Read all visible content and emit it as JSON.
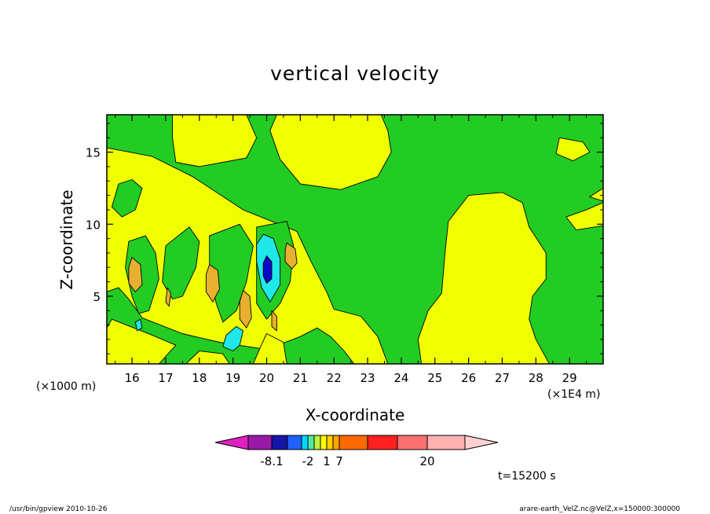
{
  "footer": {
    "left": "/usr/bin/gpview   2010-10-26",
    "right": "arare-earth_VelZ.nc@VelZ,x=150000:300000"
  },
  "chart_data": {
    "type": "heatmap",
    "title": "vertical velocity",
    "xlabel": "X-coordinate",
    "ylabel": "Z-coordinate",
    "x_unit_left": "(×1000 m)",
    "x_unit_right": "(×1E4 m)",
    "time_label": "t=15200 s",
    "xlim": [
      15.25,
      30.0
    ],
    "ylim": [
      0.3,
      17.6
    ],
    "x_ticks": [
      "16",
      "17",
      "18",
      "19",
      "20",
      "21",
      "22",
      "23",
      "24",
      "25",
      "26",
      "27",
      "28",
      "29"
    ],
    "x_tick_values": [
      16,
      17,
      18,
      19,
      20,
      21,
      22,
      23,
      24,
      25,
      26,
      27,
      28,
      29
    ],
    "y_ticks": [
      "5",
      "10",
      "15"
    ],
    "y_tick_values": [
      5,
      10,
      15
    ],
    "colorbar": {
      "labels": [
        "-8.1",
        "-2",
        "1",
        "7",
        "20"
      ],
      "segments": [
        "#9a1aa8",
        "#1515a8",
        "#2060ff",
        "#00d8ff",
        "#50e8a0",
        "#c0f040",
        "#ffff00",
        "#ffd000",
        "#ffa500",
        "#ff6a00",
        "#ff2020",
        "#ff7070",
        "#ffb0b0"
      ],
      "under_color": "#e020c0",
      "over_color": "#ffd0d0"
    },
    "colors": {
      "background_field": "#22cc22",
      "positive_weak": "#f0ff00",
      "positive_mid": "#e8b030",
      "negative_weak": "#20e8e8",
      "negative_strong": "#0808c8"
    },
    "regions": [
      {
        "level": "positive_weak",
        "pts": [
          [
            20.3,
            17.6
          ],
          [
            23.4,
            17.6
          ],
          [
            23.6,
            16.5
          ],
          [
            23.7,
            15.0
          ],
          [
            23.3,
            13.3
          ],
          [
            22.2,
            12.4
          ],
          [
            21.0,
            12.8
          ],
          [
            20.4,
            14.5
          ],
          [
            20.1,
            16.5
          ]
        ]
      },
      {
        "level": "positive_weak",
        "pts": [
          [
            17.2,
            17.6
          ],
          [
            19.4,
            17.6
          ],
          [
            19.7,
            16.0
          ],
          [
            19.4,
            14.6
          ],
          [
            18.0,
            14.0
          ],
          [
            17.3,
            14.3
          ],
          [
            17.2,
            16.0
          ]
        ]
      },
      {
        "level": "positive_weak",
        "pts": [
          [
            28.7,
            16.0
          ],
          [
            29.4,
            15.7
          ],
          [
            29.6,
            15.0
          ],
          [
            29.1,
            14.4
          ],
          [
            28.6,
            14.9
          ]
        ]
      },
      {
        "level": "positive_weak",
        "pts": [
          [
            15.25,
            15.3
          ],
          [
            16.6,
            14.7
          ],
          [
            17.8,
            13.3
          ],
          [
            19.3,
            11.0
          ],
          [
            20.9,
            9.5
          ],
          [
            21.3,
            7.5
          ],
          [
            21.8,
            5.2
          ],
          [
            22.0,
            4.1
          ],
          [
            22.8,
            3.6
          ],
          [
            23.3,
            2.2
          ],
          [
            23.6,
            0.3
          ],
          [
            15.25,
            0.3
          ]
        ]
      },
      {
        "level": "positive_weak",
        "pts": [
          [
            24.6,
            0.3
          ],
          [
            28.4,
            0.3
          ],
          [
            28.0,
            2.0
          ],
          [
            27.8,
            3.4
          ],
          [
            27.9,
            5.0
          ],
          [
            28.3,
            6.2
          ],
          [
            28.3,
            8.0
          ],
          [
            27.8,
            9.8
          ],
          [
            27.6,
            11.5
          ],
          [
            27.0,
            12.2
          ],
          [
            26.0,
            12.0
          ],
          [
            25.4,
            10.2
          ],
          [
            25.3,
            8.0
          ],
          [
            25.2,
            5.2
          ],
          [
            24.8,
            4.0
          ],
          [
            24.5,
            2.0
          ]
        ]
      },
      {
        "level": "positive_weak",
        "pts": [
          [
            28.9,
            10.5
          ],
          [
            29.5,
            11.0
          ],
          [
            30.0,
            11.5
          ],
          [
            30.0,
            9.9
          ],
          [
            29.2,
            9.6
          ]
        ]
      },
      {
        "level": "positive_weak",
        "pts": [
          [
            30.0,
            12.5
          ],
          [
            29.6,
            11.9
          ],
          [
            30.0,
            11.6
          ]
        ]
      },
      {
        "level": "background_field",
        "pts": [
          [
            15.6,
            12.8
          ],
          [
            16.0,
            13.1
          ],
          [
            16.3,
            12.5
          ],
          [
            16.1,
            11.0
          ],
          [
            15.7,
            10.5
          ],
          [
            15.4,
            11.2
          ]
        ]
      },
      {
        "level": "background_field",
        "pts": [
          [
            15.9,
            8.8
          ],
          [
            16.4,
            9.2
          ],
          [
            16.7,
            8.0
          ],
          [
            16.8,
            6.2
          ],
          [
            16.5,
            4.0
          ],
          [
            16.2,
            3.8
          ],
          [
            16.0,
            5.0
          ],
          [
            15.8,
            7.0
          ]
        ]
      },
      {
        "level": "background_field",
        "pts": [
          [
            17.0,
            8.5
          ],
          [
            17.7,
            9.8
          ],
          [
            18.0,
            8.8
          ],
          [
            17.9,
            7.0
          ],
          [
            17.5,
            5.0
          ],
          [
            17.2,
            4.8
          ],
          [
            16.9,
            6.0
          ]
        ]
      },
      {
        "level": "background_field",
        "pts": [
          [
            18.3,
            9.2
          ],
          [
            19.2,
            10.0
          ],
          [
            19.6,
            8.5
          ],
          [
            19.4,
            6.0
          ],
          [
            19.1,
            4.0
          ],
          [
            18.7,
            3.2
          ],
          [
            18.5,
            4.5
          ],
          [
            18.3,
            6.5
          ]
        ]
      },
      {
        "level": "background_field",
        "pts": [
          [
            19.7,
            9.8
          ],
          [
            20.6,
            10.2
          ],
          [
            20.8,
            8.5
          ],
          [
            20.7,
            6.0
          ],
          [
            20.4,
            4.5
          ],
          [
            20.0,
            3.4
          ],
          [
            19.7,
            4.5
          ]
        ]
      },
      {
        "level": "background_field",
        "pts": [
          [
            15.25,
            5.3
          ],
          [
            15.6,
            5.6
          ],
          [
            15.9,
            4.8
          ],
          [
            16.3,
            3.5
          ],
          [
            17.5,
            2.4
          ],
          [
            18.6,
            1.8
          ],
          [
            20.0,
            1.3
          ],
          [
            21.0,
            2.2
          ],
          [
            21.5,
            2.8
          ],
          [
            21.9,
            2.2
          ],
          [
            22.3,
            1.2
          ],
          [
            22.6,
            0.3
          ],
          [
            15.25,
            0.3
          ]
        ]
      },
      {
        "level": "positive_weak",
        "pts": [
          [
            15.4,
            3.4
          ],
          [
            16.6,
            2.3
          ],
          [
            17.3,
            1.6
          ],
          [
            16.8,
            0.3
          ],
          [
            15.25,
            0.3
          ],
          [
            15.25,
            2.8
          ]
        ]
      },
      {
        "level": "positive_weak",
        "pts": [
          [
            17.6,
            0.3
          ],
          [
            18.9,
            0.3
          ],
          [
            18.7,
            1.0
          ],
          [
            18.0,
            1.2
          ]
        ]
      },
      {
        "level": "positive_weak",
        "pts": [
          [
            19.6,
            0.3
          ],
          [
            20.6,
            0.3
          ],
          [
            20.5,
            1.8
          ],
          [
            20.0,
            2.4
          ],
          [
            19.8,
            1.4
          ]
        ]
      },
      {
        "level": "positive_mid",
        "pts": [
          [
            16.0,
            7.7
          ],
          [
            16.25,
            7.2
          ],
          [
            16.3,
            5.8
          ],
          [
            16.1,
            5.3
          ],
          [
            15.9,
            5.9
          ],
          [
            15.9,
            7.0
          ]
        ]
      },
      {
        "level": "positive_mid",
        "pts": [
          [
            18.3,
            7.2
          ],
          [
            18.55,
            6.8
          ],
          [
            18.6,
            5.5
          ],
          [
            18.4,
            4.6
          ],
          [
            18.2,
            5.3
          ],
          [
            18.2,
            6.5
          ]
        ]
      },
      {
        "level": "positive_mid",
        "pts": [
          [
            19.3,
            5.4
          ],
          [
            19.5,
            5.0
          ],
          [
            19.55,
            3.5
          ],
          [
            19.4,
            2.8
          ],
          [
            19.2,
            3.4
          ],
          [
            19.2,
            4.6
          ]
        ]
      },
      {
        "level": "positive_mid",
        "pts": [
          [
            20.6,
            8.7
          ],
          [
            20.85,
            8.3
          ],
          [
            20.9,
            7.3
          ],
          [
            20.75,
            6.9
          ],
          [
            20.55,
            7.4
          ],
          [
            20.55,
            8.2
          ]
        ]
      },
      {
        "level": "positive_mid",
        "pts": [
          [
            17.05,
            5.6
          ],
          [
            17.15,
            5.2
          ],
          [
            17.1,
            4.3
          ],
          [
            17.0,
            4.6
          ]
        ]
      },
      {
        "level": "positive_mid",
        "pts": [
          [
            20.15,
            4.0
          ],
          [
            20.3,
            3.6
          ],
          [
            20.3,
            2.6
          ],
          [
            20.15,
            2.9
          ]
        ]
      },
      {
        "level": "negative_weak",
        "pts": [
          [
            19.9,
            9.3
          ],
          [
            20.2,
            9.0
          ],
          [
            20.4,
            7.6
          ],
          [
            20.4,
            5.8
          ],
          [
            20.1,
            4.6
          ],
          [
            19.85,
            5.6
          ],
          [
            19.7,
            7.4
          ],
          [
            19.7,
            8.6
          ]
        ]
      },
      {
        "level": "negative_strong",
        "pts": [
          [
            20.0,
            7.8
          ],
          [
            20.15,
            7.4
          ],
          [
            20.15,
            6.2
          ],
          [
            20.0,
            5.9
          ],
          [
            19.9,
            6.4
          ],
          [
            19.9,
            7.3
          ]
        ]
      },
      {
        "level": "negative_weak",
        "pts": [
          [
            18.8,
            2.3
          ],
          [
            19.1,
            2.9
          ],
          [
            19.3,
            2.6
          ],
          [
            19.2,
            1.6
          ],
          [
            19.0,
            1.2
          ],
          [
            18.7,
            1.5
          ]
        ]
      },
      {
        "level": "negative_weak",
        "pts": [
          [
            16.1,
            3.2
          ],
          [
            16.25,
            3.4
          ],
          [
            16.3,
            2.8
          ],
          [
            16.15,
            2.6
          ]
        ]
      }
    ]
  }
}
